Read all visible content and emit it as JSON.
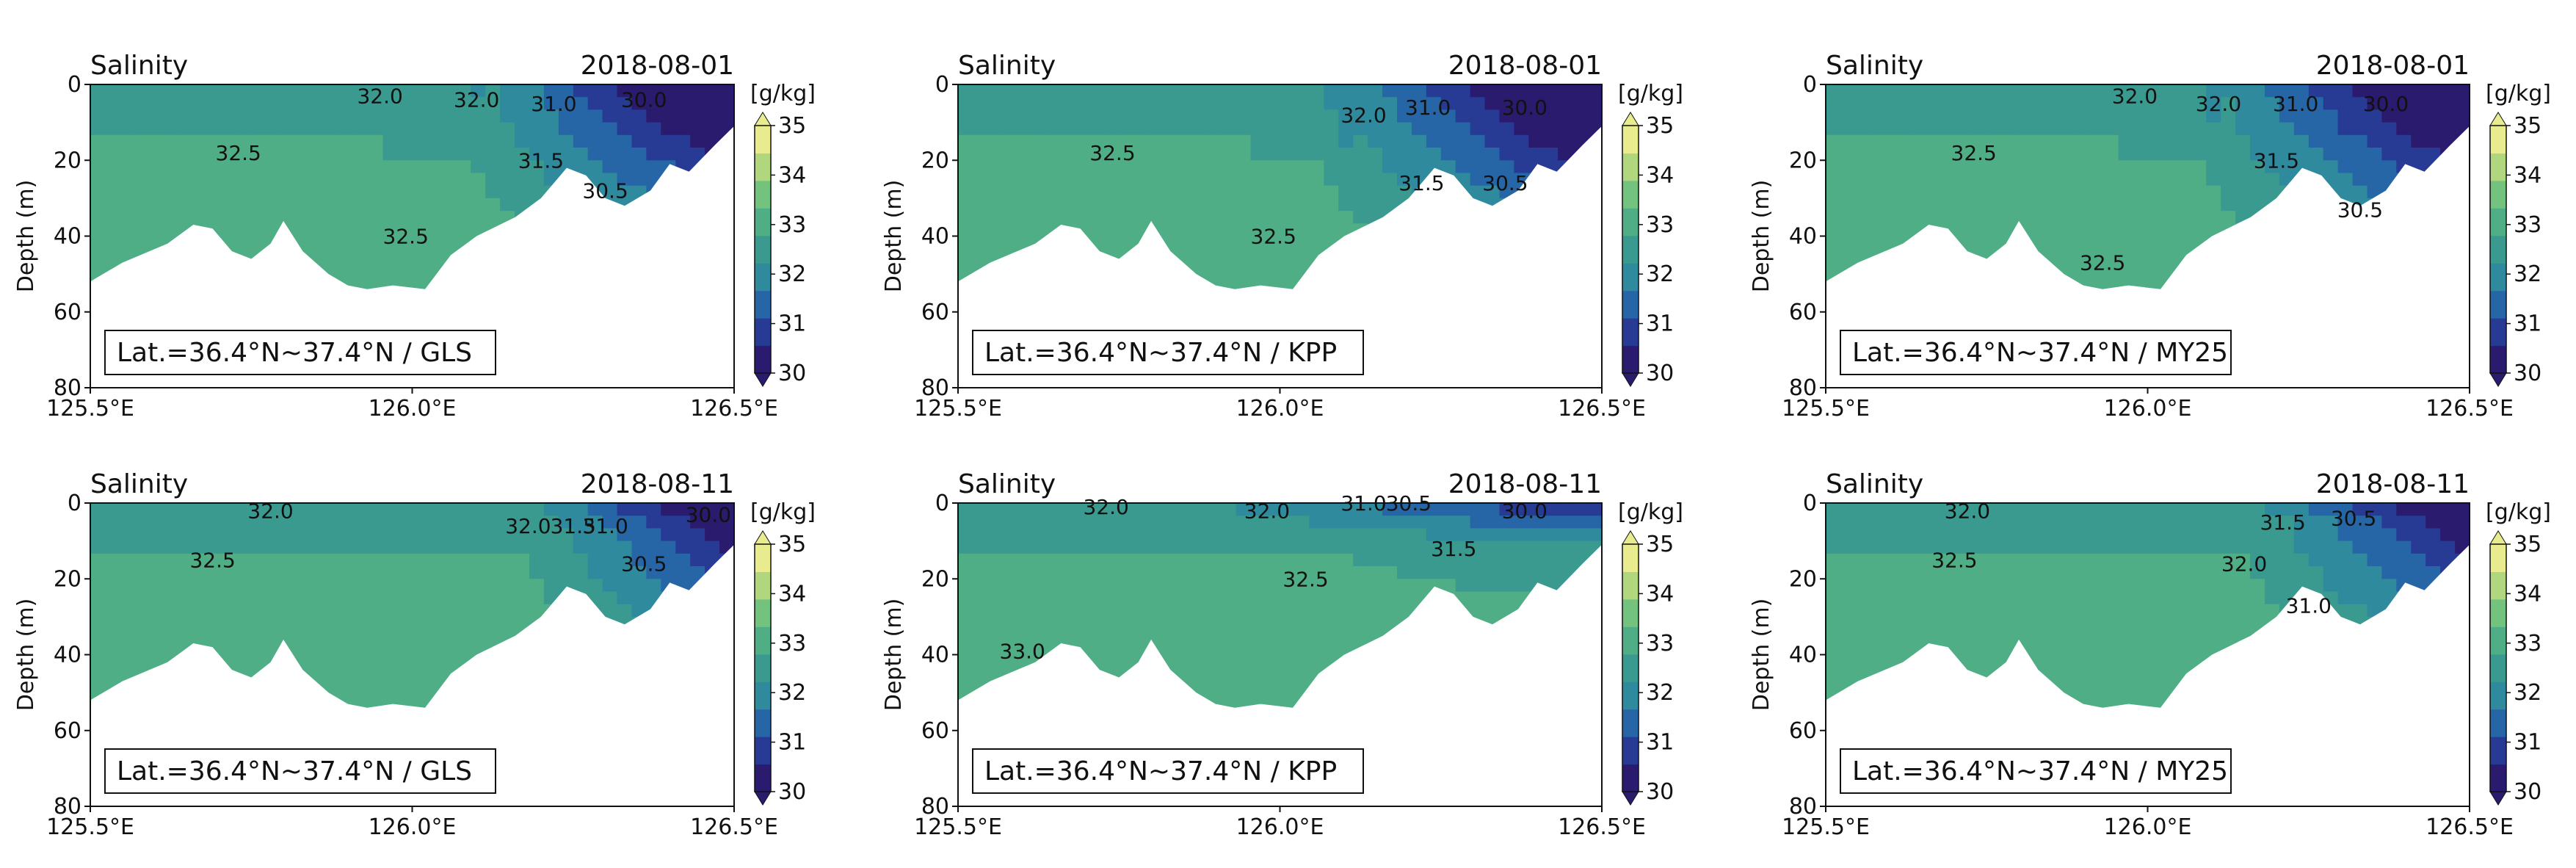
{
  "figure": {
    "description_type": "multi-panel salinity transect contour plots",
    "colormap": [
      "#2a1b6e",
      "#273a94",
      "#2766a6",
      "#2f8a9e",
      "#3a9a8f",
      "#4fae85",
      "#73c27d",
      "#b0d77e",
      "#e8ec8f"
    ],
    "land_color": "#ffffff"
  },
  "chart_data": [
    {
      "type": "contour",
      "title": "Salinity",
      "date": "2018-08-01",
      "annotation": "Lat.=36.4°N~37.4°N / GLS",
      "ylabel": "Depth (m)",
      "xlabel": "",
      "xlim": [
        125.5,
        126.5
      ],
      "ylim": [
        80,
        0
      ],
      "xticks": [
        "125.5°E",
        "126.0°E",
        "126.5°E"
      ],
      "yticks": [
        "0",
        "20",
        "40",
        "60",
        "80"
      ],
      "colorbar": {
        "unit": "[g/kg]",
        "ticks": [
          "30",
          "31",
          "32",
          "33",
          "34",
          "35"
        ],
        "range": [
          30,
          35
        ],
        "extend": "both"
      },
      "contour_labels": [
        {
          "text": "32.0",
          "lon": 125.95,
          "depth": 3
        },
        {
          "text": "32.0",
          "lon": 126.1,
          "depth": 4
        },
        {
          "text": "31.0",
          "lon": 126.22,
          "depth": 5
        },
        {
          "text": "30.0",
          "lon": 126.36,
          "depth": 4
        },
        {
          "text": "32.5",
          "lon": 125.73,
          "depth": 18
        },
        {
          "text": "31.5",
          "lon": 126.2,
          "depth": 20
        },
        {
          "text": "30.5",
          "lon": 126.3,
          "depth": 28
        },
        {
          "text": "32.5",
          "lon": 125.99,
          "depth": 40
        }
      ],
      "bottom_depth": [
        [
          125.5,
          52
        ],
        [
          125.55,
          47
        ],
        [
          125.62,
          42
        ],
        [
          125.66,
          37
        ],
        [
          125.69,
          38
        ],
        [
          125.72,
          44
        ],
        [
          125.75,
          46
        ],
        [
          125.78,
          42
        ],
        [
          125.8,
          36
        ],
        [
          125.83,
          44
        ],
        [
          125.87,
          50
        ],
        [
          125.9,
          53
        ],
        [
          125.93,
          54
        ],
        [
          125.97,
          53
        ],
        [
          126.02,
          54
        ],
        [
          126.06,
          45
        ],
        [
          126.1,
          40
        ],
        [
          126.16,
          35
        ],
        [
          126.2,
          30
        ],
        [
          126.24,
          22
        ],
        [
          126.27,
          24
        ],
        [
          126.3,
          30
        ],
        [
          126.33,
          32
        ],
        [
          126.37,
          28
        ],
        [
          126.4,
          21
        ],
        [
          126.43,
          23
        ],
        [
          126.47,
          16
        ],
        [
          126.5,
          11
        ]
      ]
    },
    {
      "type": "contour",
      "title": "Salinity",
      "date": "2018-08-01",
      "annotation": "Lat.=36.4°N~37.4°N / KPP",
      "ylabel": "Depth (m)",
      "xlabel": "",
      "xlim": [
        125.5,
        126.5
      ],
      "ylim": [
        80,
        0
      ],
      "xticks": [
        "125.5°E",
        "126.0°E",
        "126.5°E"
      ],
      "yticks": [
        "0",
        "20",
        "40",
        "60",
        "80"
      ],
      "colorbar": {
        "unit": "[g/kg]",
        "ticks": [
          "30",
          "31",
          "32",
          "33",
          "34",
          "35"
        ],
        "range": [
          30,
          35
        ],
        "extend": "both"
      },
      "contour_labels": [
        {
          "text": "32.0",
          "lon": 126.13,
          "depth": 8
        },
        {
          "text": "31.0",
          "lon": 126.23,
          "depth": 6
        },
        {
          "text": "30.0",
          "lon": 126.38,
          "depth": 6
        },
        {
          "text": "32.5",
          "lon": 125.74,
          "depth": 18
        },
        {
          "text": "31.5",
          "lon": 126.22,
          "depth": 26
        },
        {
          "text": "30.5",
          "lon": 126.35,
          "depth": 26
        },
        {
          "text": "32.5",
          "lon": 125.99,
          "depth": 40
        }
      ],
      "bottom_depth": [
        [
          125.5,
          52
        ],
        [
          125.55,
          47
        ],
        [
          125.62,
          42
        ],
        [
          125.66,
          37
        ],
        [
          125.69,
          38
        ],
        [
          125.72,
          44
        ],
        [
          125.75,
          46
        ],
        [
          125.78,
          42
        ],
        [
          125.8,
          36
        ],
        [
          125.83,
          44
        ],
        [
          125.87,
          50
        ],
        [
          125.9,
          53
        ],
        [
          125.93,
          54
        ],
        [
          125.97,
          53
        ],
        [
          126.02,
          54
        ],
        [
          126.06,
          45
        ],
        [
          126.1,
          40
        ],
        [
          126.16,
          35
        ],
        [
          126.2,
          30
        ],
        [
          126.24,
          22
        ],
        [
          126.27,
          24
        ],
        [
          126.3,
          30
        ],
        [
          126.33,
          32
        ],
        [
          126.37,
          28
        ],
        [
          126.4,
          21
        ],
        [
          126.43,
          23
        ],
        [
          126.47,
          16
        ],
        [
          126.5,
          11
        ]
      ]
    },
    {
      "type": "contour",
      "title": "Salinity",
      "date": "2018-08-01",
      "annotation": "Lat.=36.4°N~37.4°N / MY25",
      "ylabel": "Depth (m)",
      "xlabel": "",
      "xlim": [
        125.5,
        126.5
      ],
      "ylim": [
        80,
        0
      ],
      "xticks": [
        "125.5°E",
        "126.0°E",
        "126.5°E"
      ],
      "yticks": [
        "0",
        "20",
        "40",
        "60",
        "80"
      ],
      "colorbar": {
        "unit": "[g/kg]",
        "ticks": [
          "30",
          "31",
          "32",
          "33",
          "34",
          "35"
        ],
        "range": [
          30,
          35
        ],
        "extend": "both"
      },
      "contour_labels": [
        {
          "text": "32.0",
          "lon": 125.98,
          "depth": 3
        },
        {
          "text": "32.0",
          "lon": 126.11,
          "depth": 5
        },
        {
          "text": "31.0",
          "lon": 126.23,
          "depth": 5
        },
        {
          "text": "30.0",
          "lon": 126.37,
          "depth": 5
        },
        {
          "text": "32.5",
          "lon": 125.73,
          "depth": 18
        },
        {
          "text": "31.5",
          "lon": 126.2,
          "depth": 20
        },
        {
          "text": "30.5",
          "lon": 126.33,
          "depth": 33
        },
        {
          "text": "32.5",
          "lon": 125.93,
          "depth": 47
        }
      ],
      "bottom_depth": [
        [
          125.5,
          52
        ],
        [
          125.55,
          47
        ],
        [
          125.62,
          42
        ],
        [
          125.66,
          37
        ],
        [
          125.69,
          38
        ],
        [
          125.72,
          44
        ],
        [
          125.75,
          46
        ],
        [
          125.78,
          42
        ],
        [
          125.8,
          36
        ],
        [
          125.83,
          44
        ],
        [
          125.87,
          50
        ],
        [
          125.9,
          53
        ],
        [
          125.93,
          54
        ],
        [
          125.97,
          53
        ],
        [
          126.02,
          54
        ],
        [
          126.06,
          45
        ],
        [
          126.1,
          40
        ],
        [
          126.16,
          35
        ],
        [
          126.2,
          30
        ],
        [
          126.24,
          22
        ],
        [
          126.27,
          24
        ],
        [
          126.3,
          30
        ],
        [
          126.33,
          32
        ],
        [
          126.37,
          28
        ],
        [
          126.4,
          21
        ],
        [
          126.43,
          23
        ],
        [
          126.47,
          16
        ],
        [
          126.5,
          11
        ]
      ]
    },
    {
      "type": "contour",
      "title": "Salinity",
      "date": "2018-08-11",
      "annotation": "Lat.=36.4°N~37.4°N / GLS",
      "ylabel": "Depth (m)",
      "xlabel": "",
      "xlim": [
        125.5,
        126.5
      ],
      "ylim": [
        80,
        0
      ],
      "xticks": [
        "125.5°E",
        "126.0°E",
        "126.5°E"
      ],
      "yticks": [
        "0",
        "20",
        "40",
        "60",
        "80"
      ],
      "colorbar": {
        "unit": "[g/kg]",
        "ticks": [
          "30",
          "31",
          "32",
          "33",
          "34",
          "35"
        ],
        "range": [
          30,
          35
        ],
        "extend": "both"
      },
      "contour_labels": [
        {
          "text": "32.0",
          "lon": 125.78,
          "depth": 2
        },
        {
          "text": "32.0",
          "lon": 126.18,
          "depth": 6
        },
        {
          "text": "31.5",
          "lon": 126.25,
          "depth": 6
        },
        {
          "text": "31.0",
          "lon": 126.3,
          "depth": 6
        },
        {
          "text": "30.0",
          "lon": 126.46,
          "depth": 3
        },
        {
          "text": "32.5",
          "lon": 125.69,
          "depth": 15
        },
        {
          "text": "30.5",
          "lon": 126.36,
          "depth": 16
        }
      ],
      "bottom_depth": [
        [
          125.5,
          52
        ],
        [
          125.55,
          47
        ],
        [
          125.62,
          42
        ],
        [
          125.66,
          37
        ],
        [
          125.69,
          38
        ],
        [
          125.72,
          44
        ],
        [
          125.75,
          46
        ],
        [
          125.78,
          42
        ],
        [
          125.8,
          36
        ],
        [
          125.83,
          44
        ],
        [
          125.87,
          50
        ],
        [
          125.9,
          53
        ],
        [
          125.93,
          54
        ],
        [
          125.97,
          53
        ],
        [
          126.02,
          54
        ],
        [
          126.06,
          45
        ],
        [
          126.1,
          40
        ],
        [
          126.16,
          35
        ],
        [
          126.2,
          30
        ],
        [
          126.24,
          22
        ],
        [
          126.27,
          24
        ],
        [
          126.3,
          30
        ],
        [
          126.33,
          32
        ],
        [
          126.37,
          28
        ],
        [
          126.4,
          21
        ],
        [
          126.43,
          23
        ],
        [
          126.47,
          16
        ],
        [
          126.5,
          11
        ]
      ]
    },
    {
      "type": "contour",
      "title": "Salinity",
      "date": "2018-08-11",
      "annotation": "Lat.=36.4°N~37.4°N / KPP",
      "ylabel": "Depth (m)",
      "xlabel": "",
      "xlim": [
        125.5,
        126.5
      ],
      "ylim": [
        80,
        0
      ],
      "xticks": [
        "125.5°E",
        "126.0°E",
        "126.5°E"
      ],
      "yticks": [
        "0",
        "20",
        "40",
        "60",
        "80"
      ],
      "colorbar": {
        "unit": "[g/kg]",
        "ticks": [
          "30",
          "31",
          "32",
          "33",
          "34",
          "35"
        ],
        "range": [
          30,
          35
        ],
        "extend": "both"
      },
      "contour_labels": [
        {
          "text": "32.0",
          "lon": 125.73,
          "depth": 1
        },
        {
          "text": "32.0",
          "lon": 125.98,
          "depth": 2
        },
        {
          "text": "31.0",
          "lon": 126.13,
          "depth": 0
        },
        {
          "text": "30.5",
          "lon": 126.2,
          "depth": 0
        },
        {
          "text": "30.0",
          "lon": 126.38,
          "depth": 2
        },
        {
          "text": "31.5",
          "lon": 126.27,
          "depth": 12
        },
        {
          "text": "32.5",
          "lon": 126.04,
          "depth": 20
        },
        {
          "text": "33.0",
          "lon": 125.6,
          "depth": 39
        }
      ],
      "bottom_depth": [
        [
          125.5,
          52
        ],
        [
          125.55,
          47
        ],
        [
          125.62,
          42
        ],
        [
          125.66,
          37
        ],
        [
          125.69,
          38
        ],
        [
          125.72,
          44
        ],
        [
          125.75,
          46
        ],
        [
          125.78,
          42
        ],
        [
          125.8,
          36
        ],
        [
          125.83,
          44
        ],
        [
          125.87,
          50
        ],
        [
          125.9,
          53
        ],
        [
          125.93,
          54
        ],
        [
          125.97,
          53
        ],
        [
          126.02,
          54
        ],
        [
          126.06,
          45
        ],
        [
          126.1,
          40
        ],
        [
          126.16,
          35
        ],
        [
          126.2,
          30
        ],
        [
          126.24,
          22
        ],
        [
          126.27,
          24
        ],
        [
          126.3,
          30
        ],
        [
          126.33,
          32
        ],
        [
          126.37,
          28
        ],
        [
          126.4,
          21
        ],
        [
          126.43,
          23
        ],
        [
          126.47,
          16
        ],
        [
          126.5,
          11
        ]
      ]
    },
    {
      "type": "contour",
      "title": "Salinity",
      "date": "2018-08-11",
      "annotation": "Lat.=36.4°N~37.4°N / MY25",
      "ylabel": "Depth (m)",
      "xlabel": "",
      "xlim": [
        125.5,
        126.5
      ],
      "ylim": [
        80,
        0
      ],
      "xticks": [
        "125.5°E",
        "126.0°E",
        "126.5°E"
      ],
      "yticks": [
        "0",
        "20",
        "40",
        "60",
        "80"
      ],
      "colorbar": {
        "unit": "[g/kg]",
        "ticks": [
          "30",
          "31",
          "32",
          "33",
          "34",
          "35"
        ],
        "range": [
          30,
          35
        ],
        "extend": "both"
      },
      "contour_labels": [
        {
          "text": "32.0",
          "lon": 125.72,
          "depth": 2
        },
        {
          "text": "31.5",
          "lon": 126.21,
          "depth": 5
        },
        {
          "text": "30.5",
          "lon": 126.32,
          "depth": 4
        },
        {
          "text": "32.5",
          "lon": 125.7,
          "depth": 15
        },
        {
          "text": "32.0",
          "lon": 126.15,
          "depth": 16
        },
        {
          "text": "31.0",
          "lon": 126.25,
          "depth": 27
        }
      ],
      "bottom_depth": [
        [
          125.5,
          52
        ],
        [
          125.55,
          47
        ],
        [
          125.62,
          42
        ],
        [
          125.66,
          37
        ],
        [
          125.69,
          38
        ],
        [
          125.72,
          44
        ],
        [
          125.75,
          46
        ],
        [
          125.78,
          42
        ],
        [
          125.8,
          36
        ],
        [
          125.83,
          44
        ],
        [
          125.87,
          50
        ],
        [
          125.9,
          53
        ],
        [
          125.93,
          54
        ],
        [
          125.97,
          53
        ],
        [
          126.02,
          54
        ],
        [
          126.06,
          45
        ],
        [
          126.1,
          40
        ],
        [
          126.16,
          35
        ],
        [
          126.2,
          30
        ],
        [
          126.24,
          22
        ],
        [
          126.27,
          24
        ],
        [
          126.3,
          30
        ],
        [
          126.33,
          32
        ],
        [
          126.37,
          28
        ],
        [
          126.4,
          21
        ],
        [
          126.43,
          23
        ],
        [
          126.47,
          16
        ],
        [
          126.5,
          11
        ]
      ]
    }
  ]
}
